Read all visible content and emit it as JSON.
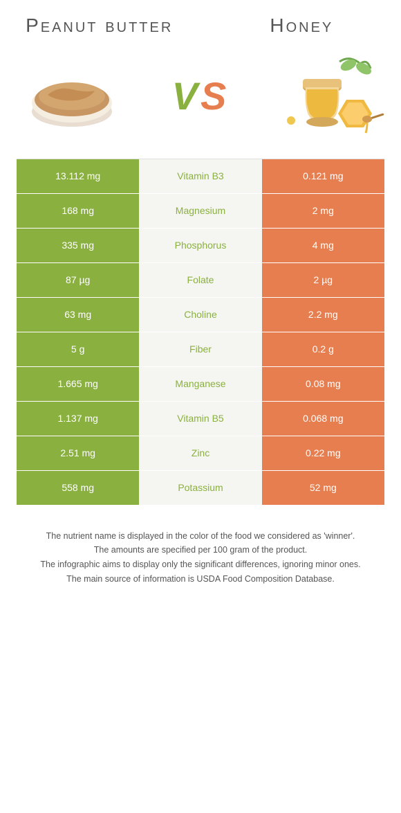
{
  "foodA": {
    "title": "Peanut butter",
    "color": "#8ab13f"
  },
  "foodB": {
    "title": "Honey",
    "color": "#e67e4f"
  },
  "vs": "VS",
  "table": {
    "mid_bg": "#f5f5f1",
    "mid_text_color": "#8ab13f",
    "rows": [
      {
        "left": "13.112 mg",
        "mid": "Vitamin B3",
        "right": "0.121 mg",
        "winner": "A"
      },
      {
        "left": "168 mg",
        "mid": "Magnesium",
        "right": "2 mg",
        "winner": "A"
      },
      {
        "left": "335 mg",
        "mid": "Phosphorus",
        "right": "4 mg",
        "winner": "A"
      },
      {
        "left": "87 µg",
        "mid": "Folate",
        "right": "2 µg",
        "winner": "A"
      },
      {
        "left": "63 mg",
        "mid": "Choline",
        "right": "2.2 mg",
        "winner": "A"
      },
      {
        "left": "5 g",
        "mid": "Fiber",
        "right": "0.2 g",
        "winner": "A"
      },
      {
        "left": "1.665 mg",
        "mid": "Manganese",
        "right": "0.08 mg",
        "winner": "A"
      },
      {
        "left": "1.137 mg",
        "mid": "Vitamin B5",
        "right": "0.068 mg",
        "winner": "A"
      },
      {
        "left": "2.51 mg",
        "mid": "Zinc",
        "right": "0.22 mg",
        "winner": "A"
      },
      {
        "left": "558 mg",
        "mid": "Potassium",
        "right": "52 mg",
        "winner": "A"
      }
    ]
  },
  "footer": {
    "line1": "The nutrient name is displayed in the color of the food we considered as 'winner'.",
    "line2": "The amounts are specified per 100 gram of the product.",
    "line3": "The infographic aims to display only the significant differences, ignoring minor ones.",
    "line4": "The main source of information is USDA Food Composition Database."
  }
}
